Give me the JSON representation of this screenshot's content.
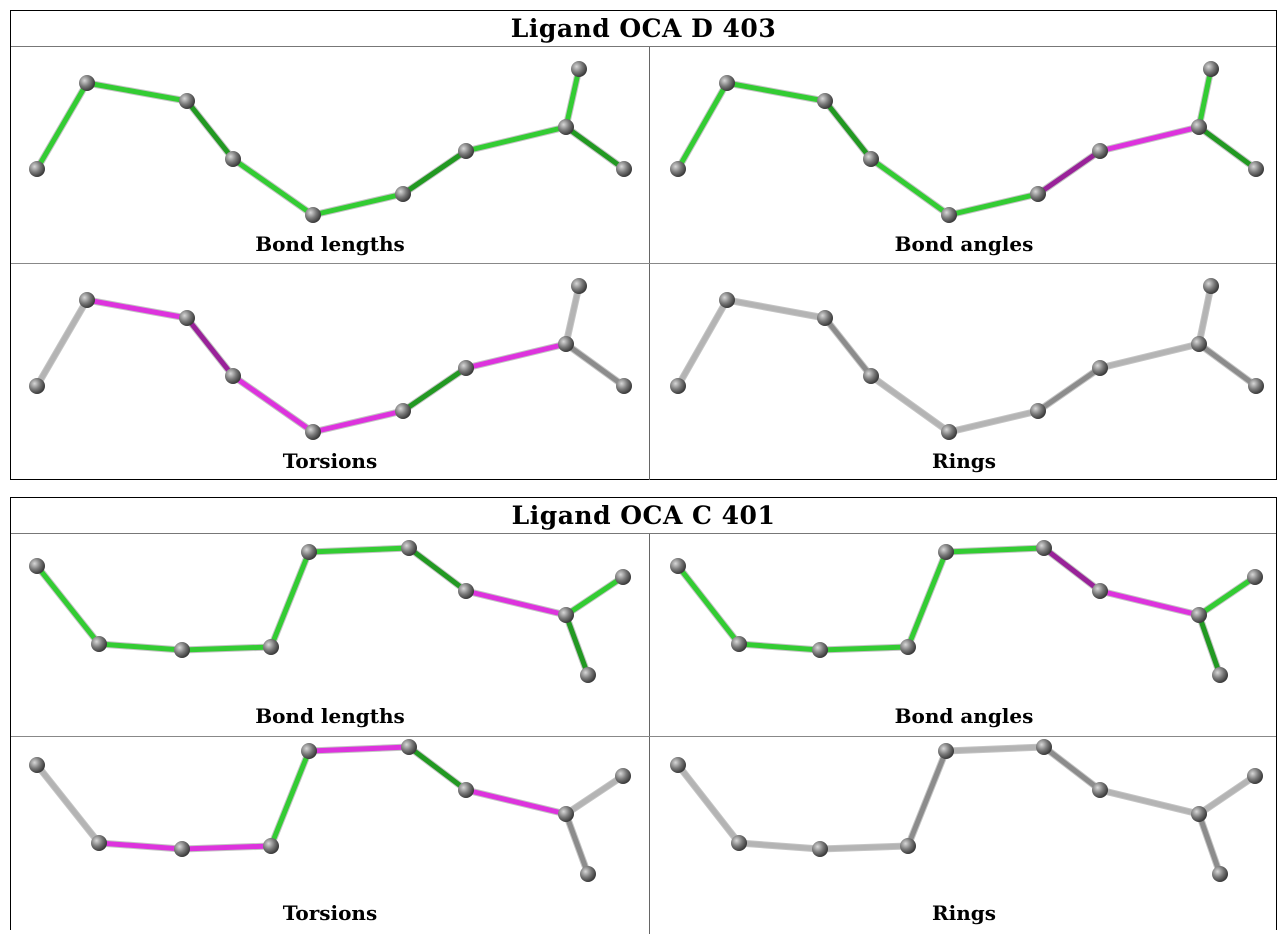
{
  "colors": {
    "ok": "#33cc33",
    "ok_dark": "#229922",
    "outlier": "#dd33dd",
    "outlier_dark": "#992299",
    "neutral": "#b4b4b4",
    "neutral_dark": "#8c8c8c",
    "atom": "#7a7a7a"
  },
  "ligands": [
    {
      "title": "Ligand OCA D 403",
      "panels": [
        {
          "caption": "Bond lengths",
          "bond_colors": [
            "ok",
            "ok",
            "ok_dark",
            "ok",
            "ok",
            "ok_dark",
            "ok",
            "ok",
            "ok_dark"
          ]
        },
        {
          "caption": "Bond angles",
          "bond_colors": [
            "ok",
            "ok",
            "ok_dark",
            "ok",
            "ok",
            "outlier_dark",
            "outlier",
            "ok",
            "ok_dark"
          ]
        },
        {
          "caption": "Torsions",
          "bond_colors": [
            "neutral",
            "outlier",
            "outlier_dark",
            "outlier",
            "outlier",
            "ok_dark",
            "outlier",
            "neutral",
            "neutral_dark"
          ]
        },
        {
          "caption": "Rings",
          "bond_colors": [
            "neutral",
            "neutral",
            "neutral_dark",
            "neutral",
            "neutral",
            "neutral_dark",
            "neutral",
            "neutral",
            "neutral_dark"
          ]
        }
      ]
    },
    {
      "title": "Ligand OCA C 401",
      "panels": [
        {
          "caption": "Bond lengths",
          "bond_colors": [
            "ok",
            "ok",
            "ok",
            "ok",
            "ok",
            "ok_dark",
            "outlier",
            "ok",
            "ok_dark"
          ]
        },
        {
          "caption": "Bond angles",
          "bond_colors": [
            "ok",
            "ok",
            "ok",
            "ok",
            "ok",
            "outlier_dark",
            "outlier",
            "ok",
            "ok_dark"
          ]
        },
        {
          "caption": "Torsions",
          "bond_colors": [
            "neutral",
            "outlier",
            "outlier",
            "ok",
            "outlier",
            "ok_dark",
            "outlier",
            "neutral",
            "neutral_dark"
          ]
        },
        {
          "caption": "Rings",
          "bond_colors": [
            "neutral",
            "neutral",
            "neutral",
            "neutral_dark",
            "neutral",
            "neutral_dark",
            "neutral",
            "neutral",
            "neutral_dark"
          ]
        }
      ]
    }
  ]
}
